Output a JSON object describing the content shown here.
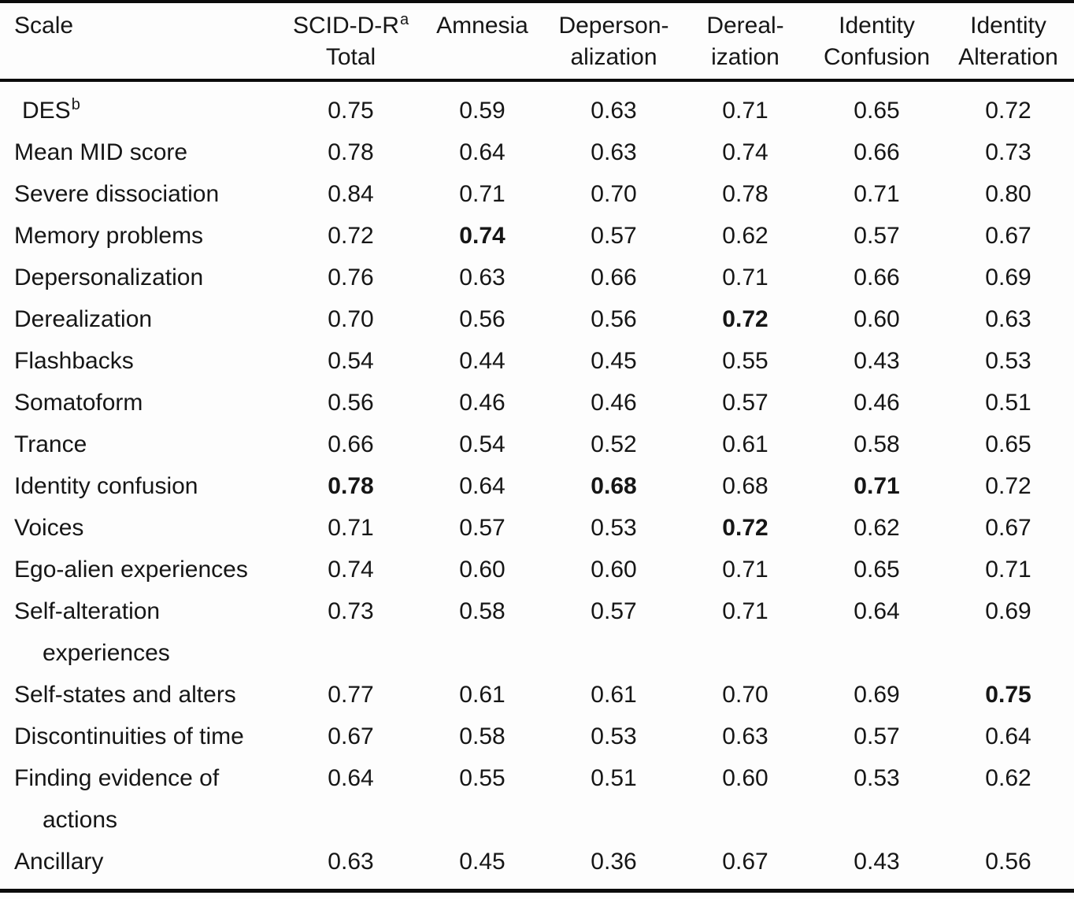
{
  "page": {
    "background_color": "#fdfdfd",
    "text_color": "#161616",
    "rule_color": "#0b0b0b"
  },
  "table": {
    "header": {
      "scale_label": "Scale",
      "columns": [
        {
          "line1": "SCID-D-R",
          "sup": "a",
          "line2": "Total"
        },
        {
          "line1": "Amnesia",
          "sup": "",
          "line2": ""
        },
        {
          "line1": "Deperson-",
          "sup": "",
          "line2": "alization"
        },
        {
          "line1": "Dereal-",
          "sup": "",
          "line2": "ization"
        },
        {
          "line1": "Identity",
          "sup": "",
          "line2": "Confusion"
        },
        {
          "line1": "Identity",
          "sup": "",
          "line2": "Alteration"
        }
      ]
    },
    "rows": [
      {
        "label": "DES",
        "sup": "b",
        "label2": "",
        "indent": true,
        "values": [
          "0.75",
          "0.59",
          "0.63",
          "0.71",
          "0.65",
          "0.72"
        ],
        "bold": []
      },
      {
        "label": "Mean MID score",
        "sup": "",
        "label2": "",
        "indent": false,
        "values": [
          "0.78",
          "0.64",
          "0.63",
          "0.74",
          "0.66",
          "0.73"
        ],
        "bold": []
      },
      {
        "label": "Severe dissociation",
        "sup": "",
        "label2": "",
        "indent": false,
        "values": [
          "0.84",
          "0.71",
          "0.70",
          "0.78",
          "0.71",
          "0.80"
        ],
        "bold": []
      },
      {
        "label": "Memory problems",
        "sup": "",
        "label2": "",
        "indent": false,
        "values": [
          "0.72",
          "0.74",
          "0.57",
          "0.62",
          "0.57",
          "0.67"
        ],
        "bold": [
          1
        ]
      },
      {
        "label": "Depersonalization",
        "sup": "",
        "label2": "",
        "indent": false,
        "values": [
          "0.76",
          "0.63",
          "0.66",
          "0.71",
          "0.66",
          "0.69"
        ],
        "bold": []
      },
      {
        "label": "Derealization",
        "sup": "",
        "label2": "",
        "indent": false,
        "values": [
          "0.70",
          "0.56",
          "0.56",
          "0.72",
          "0.60",
          "0.63"
        ],
        "bold": [
          3
        ]
      },
      {
        "label": "Flashbacks",
        "sup": "",
        "label2": "",
        "indent": false,
        "values": [
          "0.54",
          "0.44",
          "0.45",
          "0.55",
          "0.43",
          "0.53"
        ],
        "bold": []
      },
      {
        "label": "Somatoform",
        "sup": "",
        "label2": "",
        "indent": false,
        "values": [
          "0.56",
          "0.46",
          "0.46",
          "0.57",
          "0.46",
          "0.51"
        ],
        "bold": []
      },
      {
        "label": "Trance",
        "sup": "",
        "label2": "",
        "indent": false,
        "values": [
          "0.66",
          "0.54",
          "0.52",
          "0.61",
          "0.58",
          "0.65"
        ],
        "bold": []
      },
      {
        "label": "Identity confusion",
        "sup": "",
        "label2": "",
        "indent": false,
        "values": [
          "0.78",
          "0.64",
          "0.68",
          "0.68",
          "0.71",
          "0.72"
        ],
        "bold": [
          0,
          2,
          4
        ]
      },
      {
        "label": "Voices",
        "sup": "",
        "label2": "",
        "indent": false,
        "values": [
          "0.71",
          "0.57",
          "0.53",
          "0.72",
          "0.62",
          "0.67"
        ],
        "bold": [
          3
        ]
      },
      {
        "label": "Ego-alien experiences",
        "sup": "",
        "label2": "",
        "indent": false,
        "values": [
          "0.74",
          "0.60",
          "0.60",
          "0.71",
          "0.65",
          "0.71"
        ],
        "bold": []
      },
      {
        "label": "Self-alteration",
        "sup": "",
        "label2": "experiences",
        "indent": false,
        "values": [
          "0.73",
          "0.58",
          "0.57",
          "0.71",
          "0.64",
          "0.69"
        ],
        "bold": []
      },
      {
        "label": "Self-states and alters",
        "sup": "",
        "label2": "",
        "indent": false,
        "values": [
          "0.77",
          "0.61",
          "0.61",
          "0.70",
          "0.69",
          "0.75"
        ],
        "bold": [
          5
        ]
      },
      {
        "label": "Discontinuities of time",
        "sup": "",
        "label2": "",
        "indent": false,
        "values": [
          "0.67",
          "0.58",
          "0.53",
          "0.63",
          "0.57",
          "0.64"
        ],
        "bold": []
      },
      {
        "label": "Finding evidence of",
        "sup": "",
        "label2": "actions",
        "indent": false,
        "values": [
          "0.64",
          "0.55",
          "0.51",
          "0.60",
          "0.53",
          "0.62"
        ],
        "bold": []
      },
      {
        "label": "Ancillary",
        "sup": "",
        "label2": "",
        "indent": false,
        "values": [
          "0.63",
          "0.45",
          "0.36",
          "0.67",
          "0.43",
          "0.56"
        ],
        "bold": []
      }
    ]
  }
}
